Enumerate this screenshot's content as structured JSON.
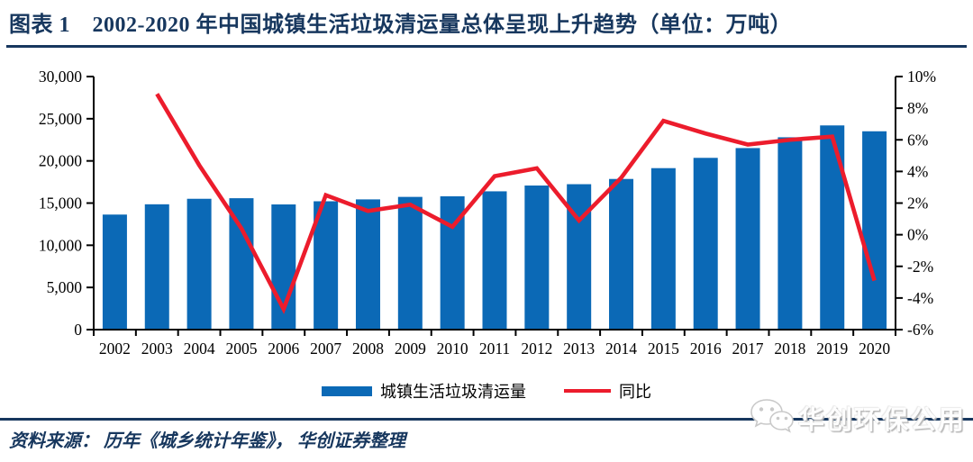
{
  "title": "图表 1　2002-2020 年中国城镇生活垃圾清运量总体呈现上升趋势（单位：万吨）",
  "source_note": "资料来源： 历年《城乡统计年鉴》， 华创证券整理",
  "watermark": {
    "icon": "wechat-icon",
    "label": "华创环保公用"
  },
  "colors": {
    "bar": "#0b69b6",
    "line": "#ec1c2c",
    "navy": "#17375e",
    "axis": "#000000",
    "watermark_gray": "#c9c9c9"
  },
  "legend": [
    {
      "type": "bar",
      "label": "城镇生活垃圾清运量"
    },
    {
      "type": "line",
      "label": "同比"
    }
  ],
  "chart_data": {
    "type": "bar",
    "subtype": "bar+line combo, dual axis",
    "title": "2002-2020 年中国城镇生活垃圾清运量",
    "unit": "万吨",
    "grid": false,
    "legend_position": "bottom",
    "categories": [
      2002,
      2003,
      2004,
      2005,
      2006,
      2007,
      2008,
      2009,
      2010,
      2011,
      2012,
      2013,
      2014,
      2015,
      2016,
      2017,
      2018,
      2019,
      2020
    ],
    "series": [
      {
        "name": "城镇生活垃圾清运量",
        "type": "bar",
        "axis": "left",
        "unit": "万吨",
        "values": [
          13638,
          14857,
          15509,
          15577,
          14841,
          15215,
          15438,
          15734,
          15805,
          16395,
          17081,
          17239,
          17860,
          19142,
          20362,
          21521,
          22802,
          24206,
          23512
        ]
      },
      {
        "name": "同比",
        "type": "line",
        "axis": "right",
        "unit": "%",
        "values": [
          null,
          8.9,
          4.4,
          0.4,
          -4.7,
          2.5,
          1.5,
          1.9,
          0.5,
          3.7,
          4.2,
          0.9,
          3.6,
          7.2,
          6.4,
          5.7,
          6.0,
          6.2,
          -2.9
        ]
      }
    ],
    "left_axis": {
      "min": 0,
      "max": 30000,
      "step": 5000,
      "tick_labels": [
        "0",
        "5,000",
        "10,000",
        "15,000",
        "20,000",
        "25,000",
        "30,000"
      ]
    },
    "right_axis": {
      "min": -6,
      "max": 10,
      "step": 2,
      "tick_labels": [
        "-6%",
        "-4%",
        "-2%",
        "0%",
        "2%",
        "4%",
        "6%",
        "8%",
        "10%"
      ]
    }
  }
}
